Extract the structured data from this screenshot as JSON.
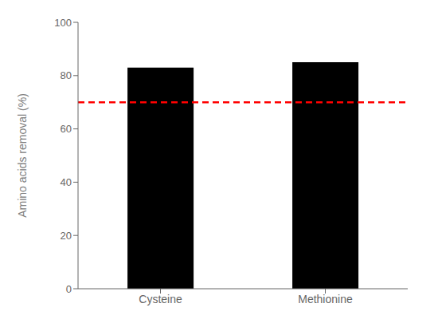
{
  "chart_data": {
    "type": "bar",
    "ylabel": "Amino acids removal (%)",
    "categories": [
      "Cysteine",
      "Methionine"
    ],
    "values": [
      83,
      85
    ],
    "color": "#000000",
    "ylim": [
      0,
      100
    ],
    "yticks": [
      0,
      20,
      40,
      60,
      80,
      100
    ],
    "grid": false,
    "reference_line": {
      "value": 70,
      "color": "#ff0000",
      "line_style": "dashed"
    }
  }
}
